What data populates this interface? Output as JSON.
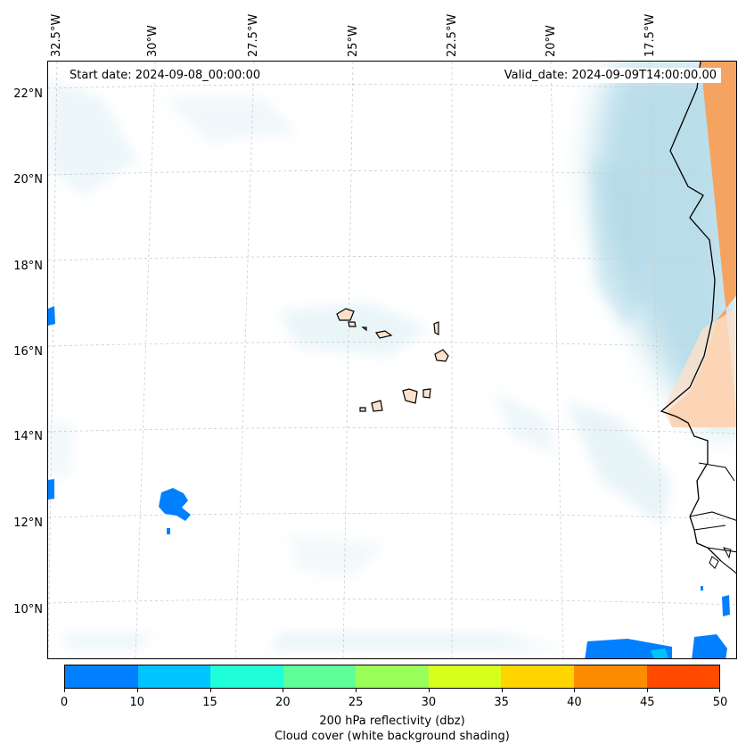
{
  "map": {
    "start_date": "Start date: 2024-09-08_00:00:00",
    "valid_date": "Valid_date: 2024-09-09T14:00:00.00",
    "lon_labels": [
      "32.5°W",
      "30°W",
      "27.5°W",
      "25°W",
      "22.5°W",
      "20°W",
      "17.5°W"
    ],
    "lat_labels": [
      "22°N",
      "20°N",
      "18°N",
      "16°N",
      "14°N",
      "12°N",
      "10°N"
    ],
    "colors": {
      "land": "#f4a460",
      "cloud": "#add8e6",
      "coastline": "#000000"
    }
  },
  "colorbar": {
    "label_1": "200 hPa reflectivity (dbz)",
    "label_2": "Cloud cover (white background shading)",
    "ticks": [
      "0",
      "10",
      "15",
      "20",
      "25",
      "30",
      "35",
      "40",
      "45",
      "50"
    ],
    "colors": [
      "#0080ff",
      "#00c4ff",
      "#1effd9",
      "#5eff98",
      "#9bff59",
      "#d9ff1c",
      "#ffd500",
      "#ff8c00",
      "#ff4a00"
    ]
  }
}
